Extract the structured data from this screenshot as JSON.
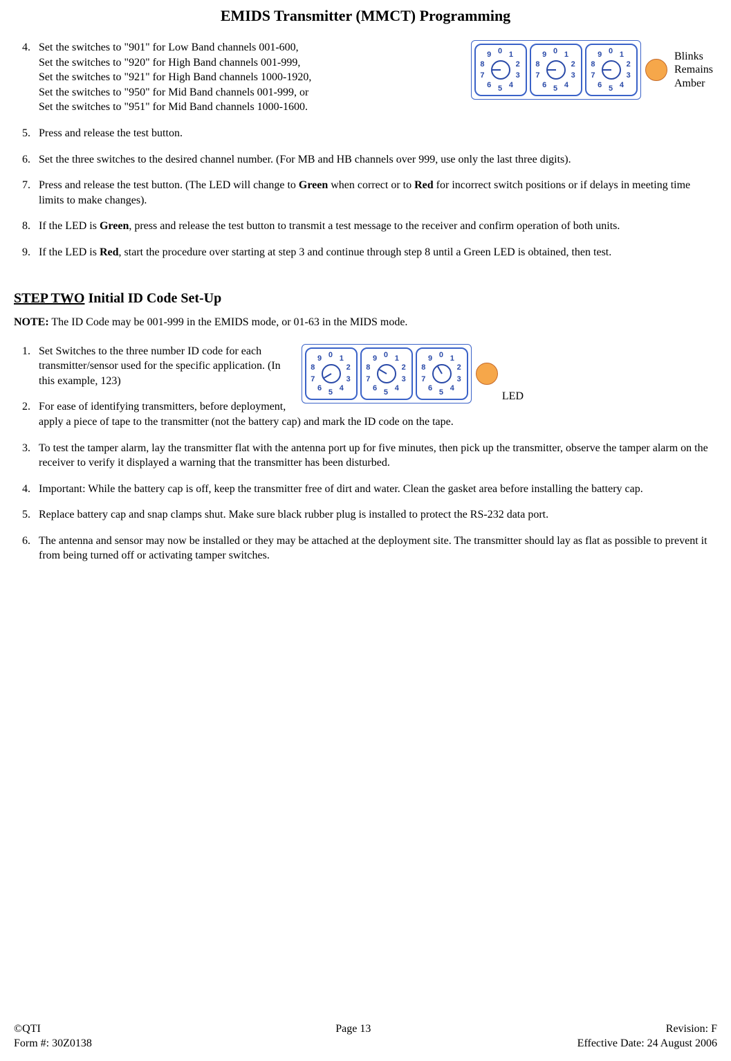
{
  "title": "EMIDS Transmitter (MMCT) Programming",
  "stepOneStart": 4,
  "stepOneItems": [
    {
      "html": "Set the switches to \"901\" for Low Band channels 001-600,<br>Set the switches to \"920\" for High Band channels 001-999,<br>Set the switches to \"921\" for High Band channels 1000-1920,<br>Set the switches to \"950\" for Mid Band channels 001-999, or<br>Set the switches to \"951\" for Mid Band channels 1000-1600."
    },
    {
      "html": "Press and release the test button."
    },
    {
      "html": "Set the three switches to the desired channel number. (For MB and HB channels over 999, use only the last three digits)."
    },
    {
      "html": "Press and release the test button.  (The LED will change to <b>Green</b> when correct or to <b>Red</b> for incorrect switch positions or if delays in meeting time limits to make changes)."
    },
    {
      "html": "If the LED is <b>Green</b>, press and release the test button to transmit a test message to the receiver and confirm operation of both units."
    },
    {
      "html": "If the LED is <b>Red</b>, start the procedure over starting at step 3 and continue through step 8 until a Green LED is obtained, then test."
    }
  ],
  "dialGroup1": {
    "led_color": "#f6a74a",
    "dials": [
      {
        "pointer_deg": -90
      },
      {
        "pointer_deg": -90
      },
      {
        "pointer_deg": -90
      }
    ],
    "label_lines": [
      "Blinks",
      "Remains",
      "Amber"
    ]
  },
  "stepTwo": {
    "heading_underline": "STEP TWO",
    "heading_rest": " Initial ID Code Set-Up",
    "note_prefix": "NOTE:",
    "note_text": "  The ID Code may be 001-999 in the EMIDS mode, or 01-63 in the MIDS mode."
  },
  "stepTwoItems": [
    {
      "html": "Set Switches to the three number ID code for each transmitter/sensor used for the specific application. (In this example, 123)"
    },
    {
      "html": "For ease of identifying transmitters, before deployment, apply a piece of tape to the transmitter (not the battery cap) and mark the ID code on the tape."
    },
    {
      "html": "To test the tamper alarm, lay the transmitter flat with the antenna port up for five minutes, then pick up the transmitter, observe the tamper alarm on the receiver to verify it displayed a warning that the transmitter has been disturbed."
    },
    {
      "html": "Important:  While the battery cap is off, keep the transmitter free of dirt and water.  Clean the gasket area before installing the battery cap."
    },
    {
      "html": "Replace battery cap and snap clamps shut.  Make sure black rubber plug is installed to protect the RS-232 data port."
    },
    {
      "html": "The antenna and sensor may now be installed or they may be attached at the deployment site.  The transmitter should lay as flat as possible to prevent it from being turned off or activating tamper switches."
    }
  ],
  "dialGroup2": {
    "led_color": "#f6a74a",
    "dials": [
      {
        "pointer_deg": -120
      },
      {
        "pointer_deg": -60
      },
      {
        "pointer_deg": -30
      }
    ],
    "label": "LED"
  },
  "footer": {
    "left1": "©QTI",
    "center1": "Page  13",
    "right1": "Revision: F",
    "left2": "Form #: 30Z0138",
    "right2": "Effective Date: 24 August 2006"
  },
  "dial_numbers": [
    "0",
    "1",
    "2",
    "3",
    "4",
    "5",
    "6",
    "7",
    "8",
    "9"
  ]
}
